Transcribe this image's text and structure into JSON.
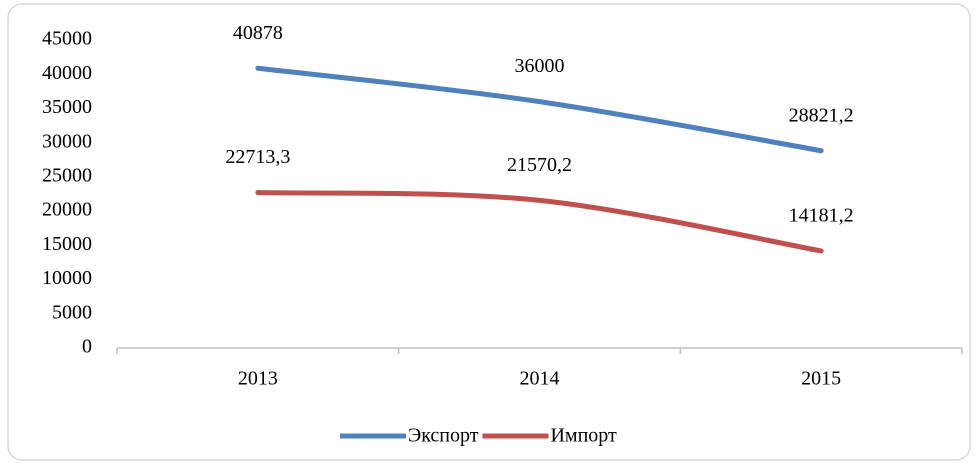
{
  "chart_data": {
    "type": "line",
    "categories": [
      "2013",
      "2014",
      "2015"
    ],
    "series": [
      {
        "name": "Экспорт",
        "color": "#4f81bd",
        "values": [
          40878,
          36000,
          28821.2
        ],
        "value_labels": [
          "40878",
          "36000",
          "28821,2"
        ]
      },
      {
        "name": "Импорт",
        "color": "#c0504d",
        "values": [
          22713.3,
          21570.2,
          14181.2
        ],
        "value_labels": [
          "22713,3",
          "21570,2",
          "14181,2"
        ]
      }
    ],
    "ylim": [
      0,
      45000
    ],
    "yticks": [
      0,
      5000,
      10000,
      15000,
      20000,
      25000,
      30000,
      35000,
      40000,
      45000
    ],
    "grid": false,
    "legend": "bottom"
  }
}
